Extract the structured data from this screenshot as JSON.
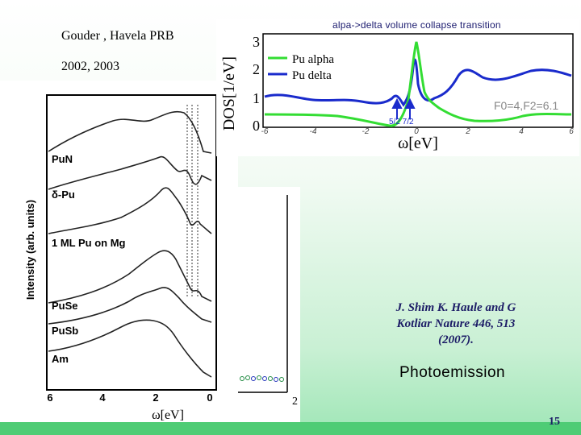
{
  "citation": {
    "line1": "Gouder , Havela PRB",
    "line2": "2002, 2003"
  },
  "dos_figure": {
    "title": "alpa->delta volume collapse transition",
    "ylabel": "DOS[1/eV]",
    "xlabel": "ω[eV]",
    "y_ticks": [
      "3",
      "2",
      "1",
      "0"
    ],
    "x_ticks": [
      "-6",
      "-4",
      "-2",
      "0",
      "2",
      "4",
      "6"
    ],
    "legend": [
      {
        "label": "Pu alpha",
        "color": "#33dd33"
      },
      {
        "label": "Pu delta",
        "color": "#1a2bcc"
      }
    ],
    "params": "F0=4,F2=6.1",
    "arrow_labels": "5/2  7/2"
  },
  "pe_figure": {
    "ylabel": "Intensity (arb. units)",
    "xlabel": "ω[eV]",
    "x_ticks": [
      "6",
      "4",
      "2",
      "0"
    ],
    "back_tick": "2",
    "curves": [
      "PuN",
      "δ-Pu",
      "1 ML Pu on Mg",
      "PuSe",
      "PuSb",
      "Am"
    ]
  },
  "credit": {
    "line1": "J. Shim K. Haule and G",
    "line2": "Kotliar Nature 446, 513",
    "line3": "(2007)."
  },
  "photoemission_label": "Photoemission",
  "page_number": "15",
  "colors": {
    "bottom_bar": "#4fcc75",
    "accent_text": "#1b1b66"
  }
}
